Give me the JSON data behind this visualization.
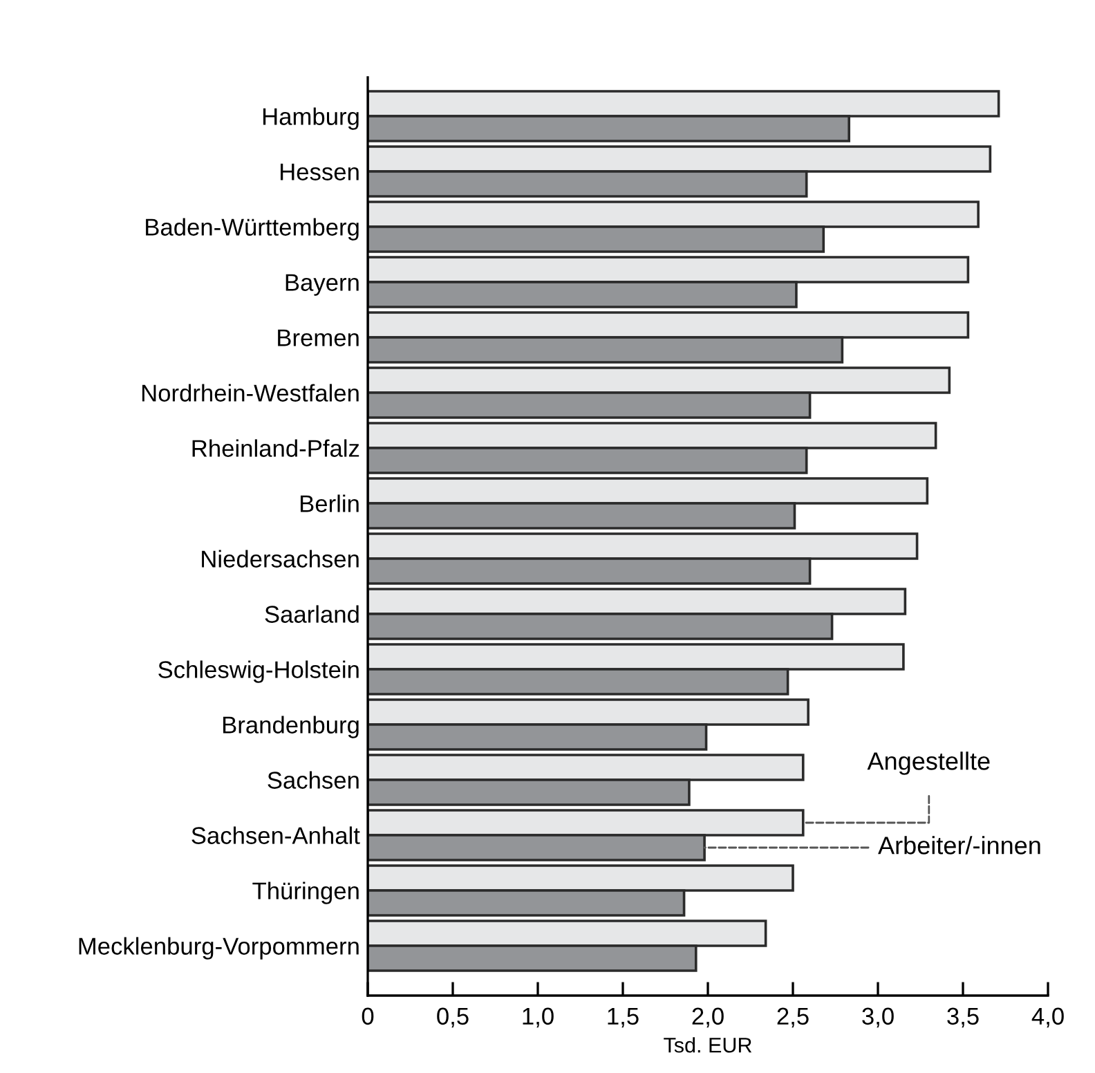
{
  "chart_data": {
    "type": "bar",
    "orientation": "horizontal",
    "xlabel": "Tsd. EUR",
    "categories": [
      "Hamburg",
      "Hessen",
      "Baden-Württemberg",
      "Bayern",
      "Bremen",
      "Nordrhein-Westfalen",
      "Rheinland-Pfalz",
      "Berlin",
      "Niedersachsen",
      "Saarland",
      "Schleswig-Holstein",
      "Brandenburg",
      "Sachsen",
      "Sachsen-Anhalt",
      "Thüringen",
      "Mecklenburg-Vorpommern"
    ],
    "series": [
      {
        "name": "Angestellte",
        "color": "#e6e7e8",
        "values": [
          3.71,
          3.66,
          3.59,
          3.53,
          3.53,
          3.42,
          3.34,
          3.29,
          3.23,
          3.16,
          3.15,
          2.59,
          2.56,
          2.56,
          2.5,
          2.34
        ]
      },
      {
        "name": "Arbeiter/-innen",
        "color": "#939598",
        "values": [
          2.83,
          2.58,
          2.68,
          2.52,
          2.79,
          2.6,
          2.58,
          2.51,
          2.6,
          2.73,
          2.47,
          1.99,
          1.89,
          1.98,
          1.86,
          1.93
        ]
      }
    ],
    "xlim": [
      0,
      4.0
    ],
    "xticks": [
      0,
      {
        "value": 0.5,
        "label": "0,5"
      },
      {
        "value": 1.0,
        "label": "1,0"
      },
      {
        "value": 1.5,
        "label": "1,5"
      },
      {
        "value": 2.0,
        "label": "2,0"
      },
      {
        "value": 2.5,
        "label": "2,5"
      },
      {
        "value": 3.0,
        "label": "3,0"
      },
      {
        "value": 3.5,
        "label": "3,5"
      },
      {
        "value": 4.0,
        "label": "4,0"
      }
    ],
    "grid": false,
    "legend": false
  }
}
